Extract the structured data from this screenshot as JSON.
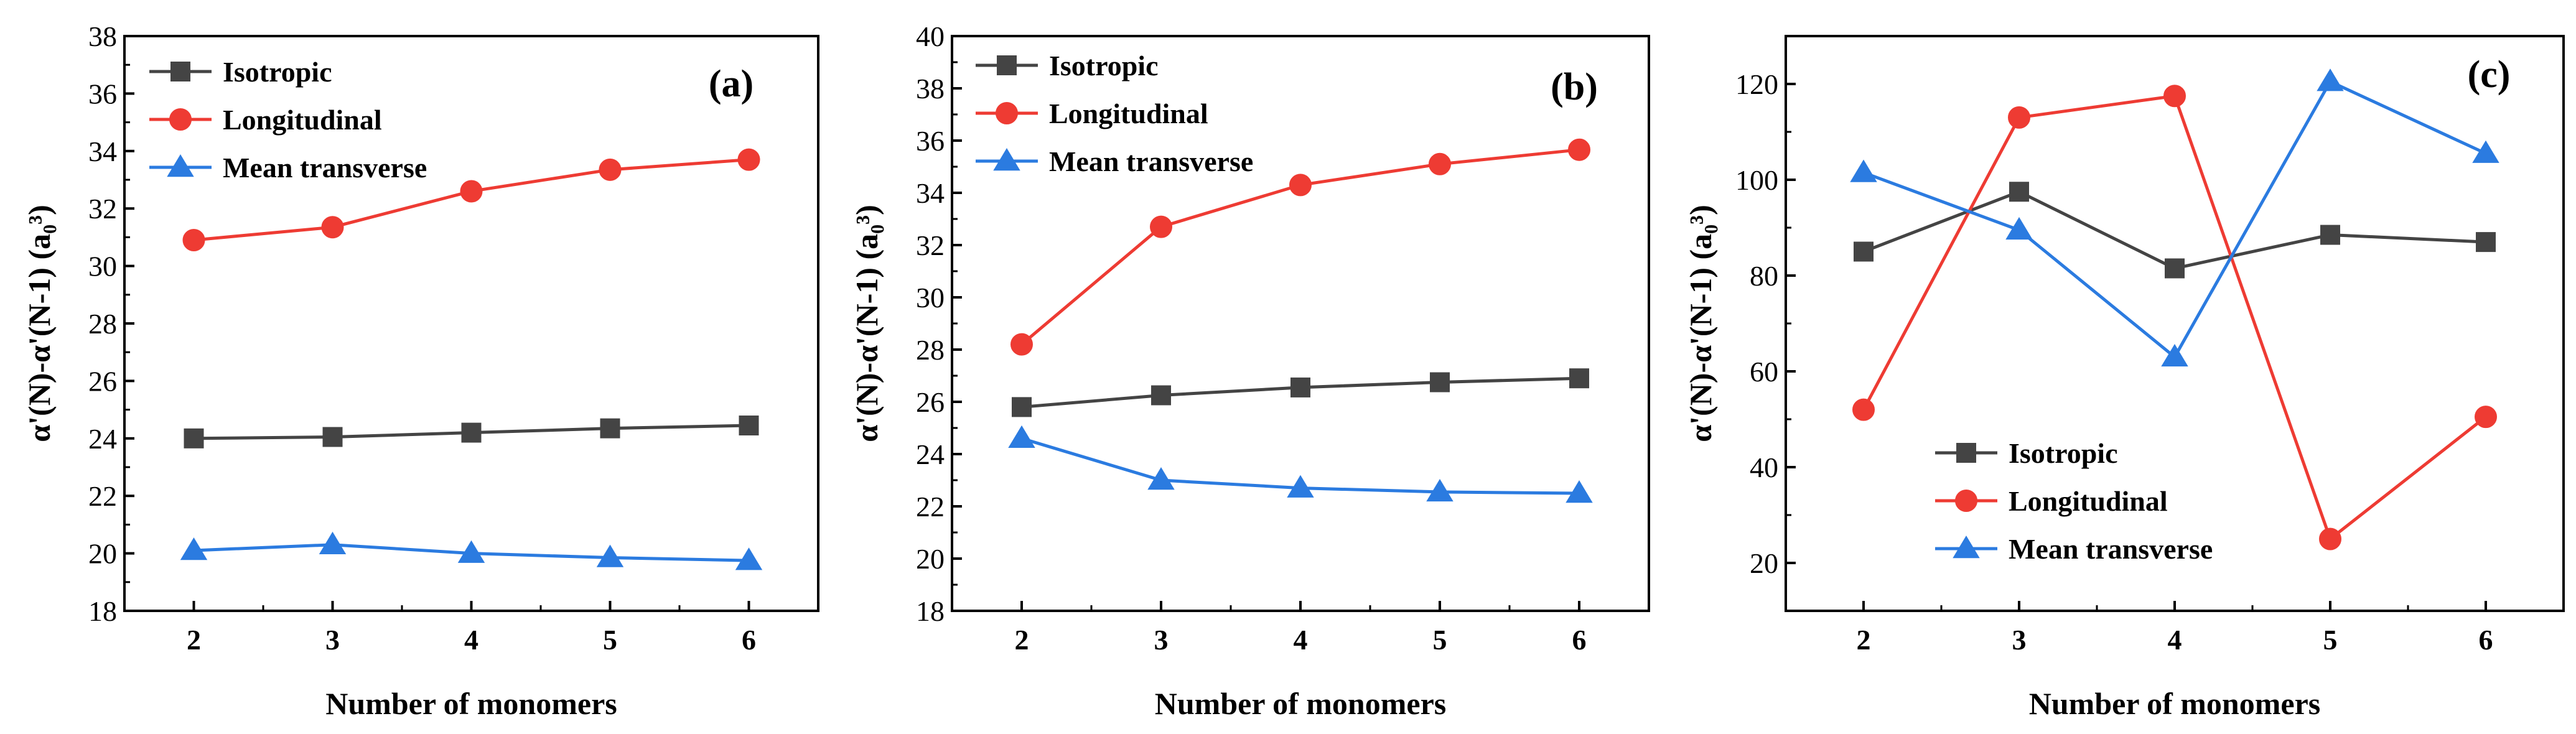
{
  "chart_data": [
    {
      "type": "line",
      "panel_label": "(a)",
      "x": [
        2,
        3,
        4,
        5,
        6
      ],
      "xlabel": "Number of monomers",
      "ylabel": "α'(N)-α'(N-1) (a₀³)",
      "ylim": [
        18,
        38
      ],
      "yticks": [
        18,
        20,
        22,
        24,
        26,
        28,
        30,
        32,
        34,
        36,
        38
      ],
      "legend_position": "top-left",
      "series": [
        {
          "name": "Isotropic",
          "color": "#444444",
          "marker": "square",
          "values": [
            24.0,
            24.05,
            24.2,
            24.35,
            24.45
          ]
        },
        {
          "name": "Longitudinal",
          "color": "#ee3b33",
          "marker": "circle",
          "values": [
            30.9,
            31.35,
            32.6,
            33.35,
            33.7
          ]
        },
        {
          "name": "Mean transverse",
          "color": "#2b7be0",
          "marker": "triangle",
          "values": [
            20.1,
            20.3,
            20.0,
            19.85,
            19.75
          ]
        }
      ]
    },
    {
      "type": "line",
      "panel_label": "(b)",
      "x": [
        2,
        3,
        4,
        5,
        6
      ],
      "xlabel": "Number of monomers",
      "ylabel": "α'(N)-α'(N-1) (a₀³)",
      "ylim": [
        18,
        40
      ],
      "yticks": [
        18,
        20,
        22,
        24,
        26,
        28,
        30,
        32,
        34,
        36,
        38,
        40
      ],
      "legend_position": "top-left",
      "series": [
        {
          "name": "Isotropic",
          "color": "#444444",
          "marker": "square",
          "values": [
            25.8,
            26.25,
            26.55,
            26.75,
            26.9
          ]
        },
        {
          "name": "Longitudinal",
          "color": "#ee3b33",
          "marker": "circle",
          "values": [
            28.2,
            32.7,
            34.3,
            35.1,
            35.65
          ]
        },
        {
          "name": "Mean transverse",
          "color": "#2b7be0",
          "marker": "triangle",
          "values": [
            24.6,
            23.0,
            22.7,
            22.55,
            22.5
          ]
        }
      ]
    },
    {
      "type": "line",
      "panel_label": "(c)",
      "x": [
        2,
        3,
        4,
        5,
        6
      ],
      "xlabel": "Number of monomers",
      "ylabel": "α'(N)-α'(N-1) (a₀³)",
      "ylim": [
        10,
        130
      ],
      "yticks": [
        20,
        40,
        60,
        80,
        100,
        120
      ],
      "legend_position": "bottom-left",
      "series": [
        {
          "name": "Isotropic",
          "color": "#444444",
          "marker": "square",
          "values": [
            85,
            97.5,
            81.5,
            88.5,
            87
          ]
        },
        {
          "name": "Longitudinal",
          "color": "#ee3b33",
          "marker": "circle",
          "values": [
            52,
            113,
            117.5,
            25,
            50.5
          ]
        },
        {
          "name": "Mean transverse",
          "color": "#2b7be0",
          "marker": "triangle",
          "values": [
            101.5,
            89.5,
            63,
            120.5,
            105.5
          ]
        }
      ]
    }
  ]
}
